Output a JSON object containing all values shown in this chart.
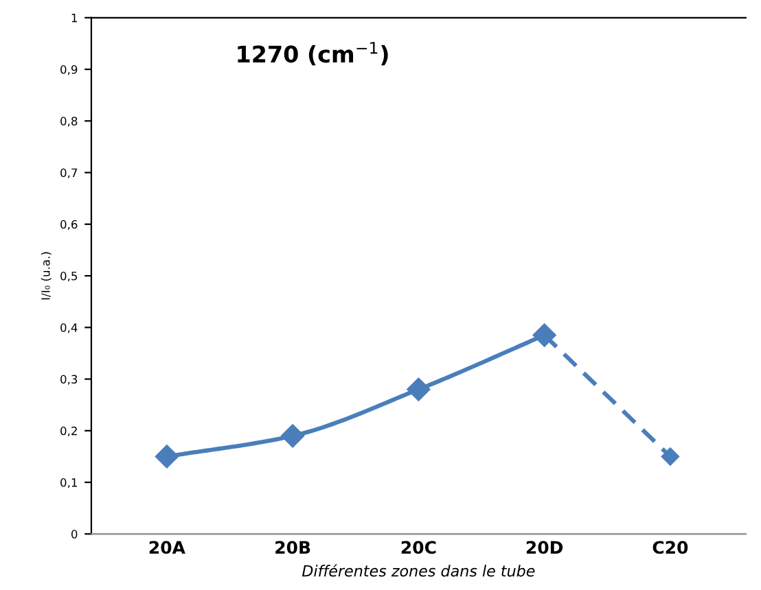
{
  "chart_data": {
    "type": "line",
    "title": "1270 (cm$^{−1}$)",
    "xlabel": "Différentes zones dans le tube",
    "ylabel": "I/I₀ (u.a.)",
    "categories": [
      "20A",
      "20B",
      "20C",
      "20D",
      "C20"
    ],
    "series": [
      {
        "color": "#4a7ebb",
        "values": [
          0.15,
          0.19,
          0.28,
          0.385,
          null
        ],
        "line_style": "solid"
      },
      {
        "color": "#4a7ebb",
        "values": [
          null,
          null,
          null,
          0.385,
          0.15
        ],
        "line_style": "dashed"
      }
    ],
    "marker": "diamond",
    "grid": false,
    "legend": false,
    "ylim": [
      0,
      1
    ],
    "yticks": [
      0,
      {
        "value": 0.1,
        "label": "0,1"
      },
      {
        "value": 0.2,
        "label": "0,2"
      },
      {
        "value": 0.3,
        "label": "0,3"
      },
      {
        "value": 0.4,
        "label": "0,4"
      },
      {
        "value": 0.5,
        "label": "0,5"
      },
      {
        "value": 0.6,
        "label": "0,6"
      },
      {
        "value": 0.7,
        "label": "0,7"
      },
      {
        "value": 0.8,
        "label": "0,8"
      },
      {
        "value": 0.9,
        "label": "0,9"
      },
      1
    ]
  }
}
